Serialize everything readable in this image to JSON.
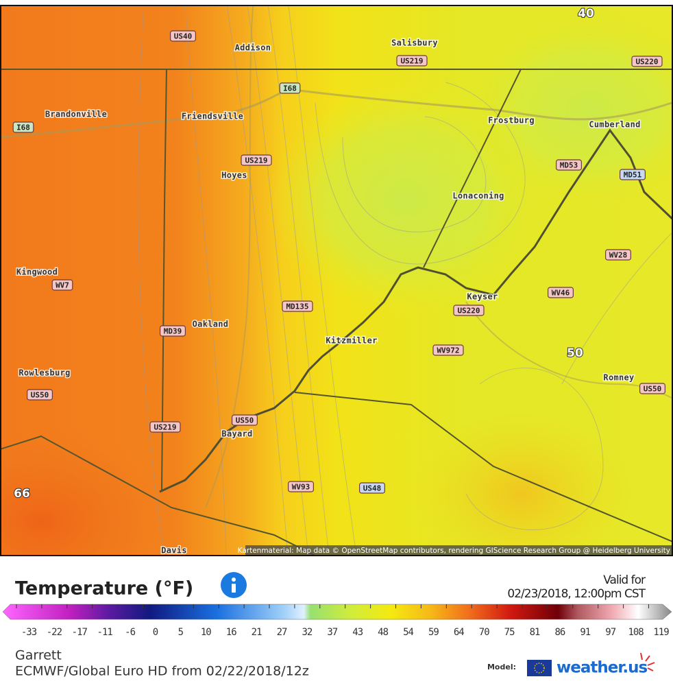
{
  "map": {
    "contour_labels": [
      "40",
      "50",
      "66"
    ],
    "places": [
      "Addison",
      "Salisbury",
      "Brandonville",
      "Friendsville",
      "Frostburg",
      "Cumberland",
      "Hoyes",
      "Lonaconing",
      "Kingwood",
      "Keyser",
      "Oakland",
      "Kitzmiller",
      "Rowlesburg",
      "Romney",
      "Bayard",
      "Davis"
    ],
    "roads": [
      {
        "label": "US40",
        "color": "#f4c6c6"
      },
      {
        "label": "US219",
        "color": "#f4c6c6"
      },
      {
        "label": "US220",
        "color": "#f4c6c6"
      },
      {
        "label": "I68",
        "color": "#c8e6c0"
      },
      {
        "label": "I68",
        "color": "#c8e6c0"
      },
      {
        "label": "US219",
        "color": "#f4c6c6"
      },
      {
        "label": "MD53",
        "color": "#f4c6c6"
      },
      {
        "label": "MD51",
        "color": "#c6d8f4"
      },
      {
        "label": "WV28",
        "color": "#f4c6c6"
      },
      {
        "label": "WV7",
        "color": "#f4c6c6"
      },
      {
        "label": "WV46",
        "color": "#f4c6c6"
      },
      {
        "label": "MD135",
        "color": "#f4c6c6"
      },
      {
        "label": "US220",
        "color": "#f4c6c6"
      },
      {
        "label": "MD39",
        "color": "#f4c6c6"
      },
      {
        "label": "WV972",
        "color": "#f4c6c6"
      },
      {
        "label": "US50",
        "color": "#f4c6c6"
      },
      {
        "label": "US50",
        "color": "#f4c6c6"
      },
      {
        "label": "US50",
        "color": "#f4c6c6"
      },
      {
        "label": "US219",
        "color": "#f4c6c6"
      },
      {
        "label": "WV93",
        "color": "#f4c6c6"
      },
      {
        "label": "US48",
        "color": "#c6d8f4"
      }
    ],
    "attribution": "Kartenmaterial: Map data © OpenStreetMap contributors, rendering GIScience Research Group @ Heidelberg University"
  },
  "legend": {
    "title": "Temperature (°F)",
    "valid_label": "Valid for",
    "valid_time": "02/23/2018, 12:00pm CST",
    "ticks": [
      -33,
      -22,
      -17,
      -11,
      -6,
      0,
      5,
      10,
      16,
      21,
      27,
      32,
      37,
      43,
      48,
      54,
      59,
      64,
      70,
      75,
      81,
      86,
      91,
      97,
      108,
      119
    ]
  },
  "footer": {
    "location": "Garrett",
    "model_run": "ECMWF/Global Euro HD from 02/22/2018/12z",
    "model_label": "Model:",
    "brand": "weather.us"
  }
}
